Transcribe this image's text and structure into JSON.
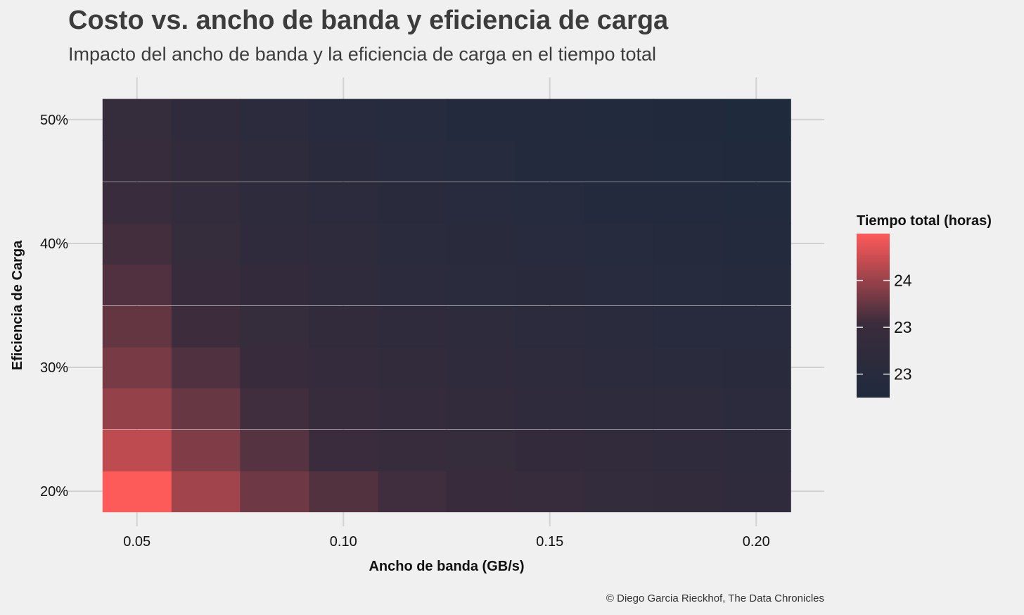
{
  "title": "Costo vs. ancho de banda y eficiencia de carga",
  "subtitle": "Impacto del ancho de banda y la eficiencia de carga en el tiempo total",
  "caption": "© Diego Garcia Rieckhof, The Data Chronicles",
  "chart_data": {
    "type": "heatmap",
    "xlabel": "Ancho de banda (GB/s)",
    "ylabel": "Eficiencia de Carga",
    "x": [
      0.05,
      0.0667,
      0.0833,
      0.1,
      0.1167,
      0.1333,
      0.15,
      0.1667,
      0.1833,
      0.2
    ],
    "y": [
      0.2,
      0.233,
      0.267,
      0.3,
      0.333,
      0.367,
      0.4,
      0.433,
      0.467,
      0.5
    ],
    "xlim": [
      0.0417,
      0.2083
    ],
    "ylim": [
      0.183,
      0.517
    ],
    "x_ticks": [
      0.05,
      0.1,
      0.15,
      0.2
    ],
    "x_tick_labels": [
      "0.05",
      "0.10",
      "0.15",
      "0.20"
    ],
    "y_ticks": [
      0.2,
      0.3,
      0.4,
      0.5
    ],
    "y_tick_labels": [
      "20%",
      "30%",
      "40%",
      "50%"
    ],
    "values": [
      [
        24.59,
        24.05,
        23.75,
        23.59,
        23.48,
        23.39,
        23.29,
        23.21,
        23.14,
        23.07
      ],
      [
        24.22,
        23.86,
        23.61,
        23.44,
        23.34,
        23.27,
        23.19,
        23.14,
        23.06,
        22.99
      ],
      [
        23.98,
        23.71,
        23.48,
        23.32,
        23.23,
        23.16,
        23.09,
        23.04,
        22.99,
        22.92
      ],
      [
        23.81,
        23.57,
        23.37,
        23.22,
        23.13,
        23.07,
        23.0,
        22.95,
        22.9,
        22.85
      ],
      [
        23.69,
        23.46,
        23.28,
        23.13,
        23.05,
        22.98,
        22.92,
        22.88,
        22.83,
        22.79
      ],
      [
        23.58,
        23.37,
        23.19,
        23.06,
        22.97,
        22.9,
        22.86,
        22.81,
        22.76,
        22.72
      ],
      [
        23.49,
        23.28,
        23.11,
        22.99,
        22.9,
        22.84,
        22.8,
        22.75,
        22.7,
        22.66
      ],
      [
        23.41,
        23.21,
        23.04,
        22.92,
        22.85,
        22.79,
        22.74,
        22.69,
        22.65,
        22.61
      ],
      [
        23.34,
        23.14,
        22.98,
        22.86,
        22.8,
        22.74,
        22.69,
        22.64,
        22.6,
        22.56
      ],
      [
        23.28,
        23.08,
        22.93,
        22.81,
        22.75,
        22.69,
        22.64,
        22.6,
        22.56,
        22.52
      ]
    ],
    "color_low": "#1f2a3d",
    "color_mid": "#3a2c3c",
    "color_high": "#ff5a5a",
    "value_range": [
      22.5,
      24.6
    ],
    "legend": {
      "title": "Tiempo total (horas)",
      "ticks": [
        24.0,
        23.4,
        22.8
      ],
      "tick_labels": [
        "24",
        "23",
        "23"
      ],
      "placement": "right"
    },
    "grid": true
  }
}
